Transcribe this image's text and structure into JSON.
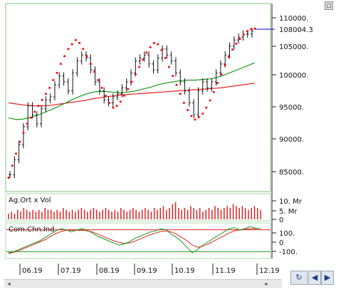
{
  "colors": {
    "panel_border": "#a8d8a8",
    "price": "#111111",
    "sar": "#ff0000",
    "ma_red": "#e02020",
    "ma_green": "#1a9a1a",
    "last_price_line": "#0000cc"
  },
  "price_panel": {
    "y_ticks": [
      "110000.",
      "105000.",
      "100000.",
      "95000.",
      "90000.",
      "85000."
    ],
    "last_price_label": "108004.3"
  },
  "volume_panel": {
    "title": "Ag.Ort x Vol",
    "y_ticks": [
      "10. Mr",
      "5. Mr",
      "0"
    ]
  },
  "cci_panel": {
    "title": "Com.Chn.Ind",
    "y_ticks": [
      "100.",
      "0",
      "-100."
    ]
  },
  "x_axis": {
    "labels": [
      "06.19",
      "07.19",
      "08.19",
      "09.19",
      "10.19",
      "11.19",
      "12.19"
    ]
  },
  "toolbar": {
    "top_button": "□",
    "scroll_left": "◂",
    "scroll_right": "▸",
    "refresh_icon": "↻",
    "prev_label": "◀",
    "next_label": "▶"
  },
  "chart_data": {
    "type": "line",
    "x_labels": [
      "06.19",
      "07.19",
      "08.19",
      "09.19",
      "10.19",
      "11.19",
      "12.19"
    ],
    "price": {
      "ylim": [
        82000,
        112000
      ],
      "close": [
        84000,
        86500,
        89000,
        92000,
        95500,
        94000,
        92500,
        95000,
        96500,
        97000,
        99000,
        100500,
        99500,
        98000,
        101000,
        103000,
        104000,
        103500,
        101500,
        99500,
        98000,
        96500,
        96000,
        97000,
        97500,
        98500,
        99500,
        101000,
        103000,
        103500,
        104000,
        102500,
        101500,
        103500,
        105000,
        104000,
        103000,
        101000,
        99500,
        98000,
        96000,
        94000,
        98000,
        99500,
        98500,
        99500,
        101000,
        102500,
        104000,
        105500,
        106500,
        107000,
        107500,
        107500,
        108004.3
      ],
      "sar": [
        83500,
        85500,
        87500,
        89500,
        91000,
        92500,
        93500,
        94500,
        95500,
        96500,
        97500,
        98500,
        99800,
        101000,
        102500,
        103800,
        105000,
        105800,
        106500,
        106000,
        105000,
        103800,
        102500,
        101200,
        99800,
        98500,
        97200,
        96000,
        95200,
        95500,
        96200,
        97200,
        98300,
        99500,
        100800,
        102000,
        103200,
        104400,
        105300,
        106000,
        105800,
        104800,
        103500,
        102000,
        100500,
        99000,
        97500,
        96000,
        94800,
        93800,
        93200,
        93600,
        94200,
        95200,
        96400,
        97800,
        99300,
        100800,
        102300,
        103700,
        104900,
        105900,
        106700,
        107400,
        108000,
        108300,
        108400
      ],
      "ma_red": [
        96000,
        95800,
        95600,
        95500,
        95500,
        95600,
        95800,
        96000,
        96200,
        96400,
        96700,
        96900,
        97100,
        97300,
        97400,
        97500,
        97600,
        97700,
        97800,
        97900,
        98000,
        98100,
        98200,
        98300,
        98400,
        98500,
        98700,
        98900,
        99100,
        99300
      ],
      "ma_green": [
        93500,
        93200,
        93300,
        93600,
        94000,
        94500,
        95000,
        95600,
        96200,
        96800,
        97300,
        97700,
        97900,
        97900,
        97800,
        97700,
        97800,
        98000,
        98300,
        98600,
        99000,
        99300,
        99500,
        99700,
        99800,
        99800,
        99900,
        100000,
        100300,
        100700,
        101200,
        101700,
        102200,
        102700
      ]
    },
    "volume": {
      "unit": "Mr",
      "ylim": [
        0,
        12
      ],
      "values": [
        3,
        4,
        3,
        5,
        4,
        6,
        5,
        4,
        5,
        4,
        5,
        4,
        6,
        5,
        5,
        4,
        5,
        4,
        6,
        5,
        4,
        5,
        4,
        5,
        6,
        5,
        4,
        5,
        6,
        5,
        4,
        5,
        6,
        5,
        4,
        5,
        4,
        6,
        5,
        4,
        5,
        6,
        5,
        4,
        5,
        6,
        5,
        4,
        6,
        5,
        6,
        7,
        5,
        6,
        8,
        9,
        6,
        5,
        6,
        5,
        7,
        6,
        5,
        6,
        4,
        5,
        6,
        5,
        7,
        6,
        5,
        6,
        7,
        6,
        8,
        7,
        6,
        7,
        6,
        5,
        6,
        7,
        6,
        5
      ]
    },
    "cci": {
      "ylim": [
        -150,
        150
      ],
      "upper": 100,
      "lower": -100,
      "green": [
        -110,
        -100,
        -80,
        -60,
        -40,
        -20,
        0,
        30,
        60,
        90,
        110,
        100,
        80,
        100,
        110,
        95,
        70,
        40,
        20,
        0,
        -20,
        -40,
        -30,
        -10,
        20,
        40,
        60,
        80,
        90,
        110,
        100,
        60,
        30,
        -10,
        -60,
        -110,
        -80,
        -40,
        -10,
        20,
        50,
        80,
        110,
        120,
        100,
        110,
        130,
        115,
        110
      ],
      "red": [
        -120,
        -105,
        -90,
        -70,
        -50,
        -30,
        -10,
        10,
        40,
        65,
        85,
        95,
        95,
        95,
        95,
        90,
        80,
        60,
        40,
        20,
        0,
        -15,
        -25,
        -20,
        -5,
        15,
        35,
        55,
        70,
        85,
        90,
        80,
        60,
        30,
        0,
        -40,
        -60,
        -50,
        -30,
        -5,
        20,
        45,
        70,
        90,
        100,
        105,
        110,
        110,
        112
      ]
    }
  }
}
